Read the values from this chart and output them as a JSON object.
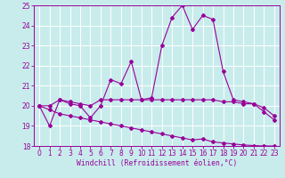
{
  "xlabel": "Windchill (Refroidissement éolien,°C)",
  "background_color": "#c8ecec",
  "grid_color": "#ffffff",
  "line_color": "#990099",
  "ylim": [
    18,
    25
  ],
  "yticks": [
    18,
    19,
    20,
    21,
    22,
    23,
    24,
    25
  ],
  "xticks": [
    0,
    1,
    2,
    3,
    4,
    5,
    6,
    7,
    8,
    9,
    10,
    11,
    12,
    13,
    14,
    15,
    16,
    17,
    18,
    19,
    20,
    21,
    22,
    23
  ],
  "line1_x": [
    0,
    1,
    2,
    3,
    4,
    5,
    6,
    7,
    8,
    9,
    10,
    11,
    12,
    13,
    14,
    15,
    16,
    17,
    18,
    19,
    20,
    21,
    22,
    23
  ],
  "line1_y": [
    20.0,
    19.0,
    20.3,
    20.1,
    20.0,
    19.4,
    20.0,
    21.3,
    21.1,
    22.2,
    20.3,
    20.4,
    23.0,
    24.4,
    25.0,
    23.8,
    24.5,
    24.3,
    21.7,
    20.3,
    20.2,
    20.1,
    19.7,
    19.3
  ],
  "line2_x": [
    0,
    1,
    2,
    3,
    4,
    5,
    6,
    7,
    8,
    9,
    10,
    11,
    12,
    13,
    14,
    15,
    16,
    17,
    18,
    19,
    20,
    21,
    22,
    23
  ],
  "line2_y": [
    20.0,
    20.0,
    20.3,
    20.2,
    20.1,
    20.0,
    20.3,
    20.3,
    20.3,
    20.3,
    20.3,
    20.3,
    20.3,
    20.3,
    20.3,
    20.3,
    20.3,
    20.3,
    20.2,
    20.2,
    20.1,
    20.1,
    19.9,
    19.5
  ],
  "line3_x": [
    0,
    1,
    2,
    3,
    4,
    5,
    6,
    7,
    8,
    9,
    10,
    11,
    12,
    13,
    14,
    15,
    16,
    17,
    18,
    19,
    20,
    21,
    22,
    23
  ],
  "line3_y": [
    20.0,
    19.8,
    19.6,
    19.5,
    19.4,
    19.3,
    19.2,
    19.1,
    19.0,
    18.9,
    18.8,
    18.7,
    18.6,
    18.5,
    18.4,
    18.3,
    18.35,
    18.2,
    18.15,
    18.1,
    18.05,
    18.02,
    18.0,
    18.0
  ]
}
